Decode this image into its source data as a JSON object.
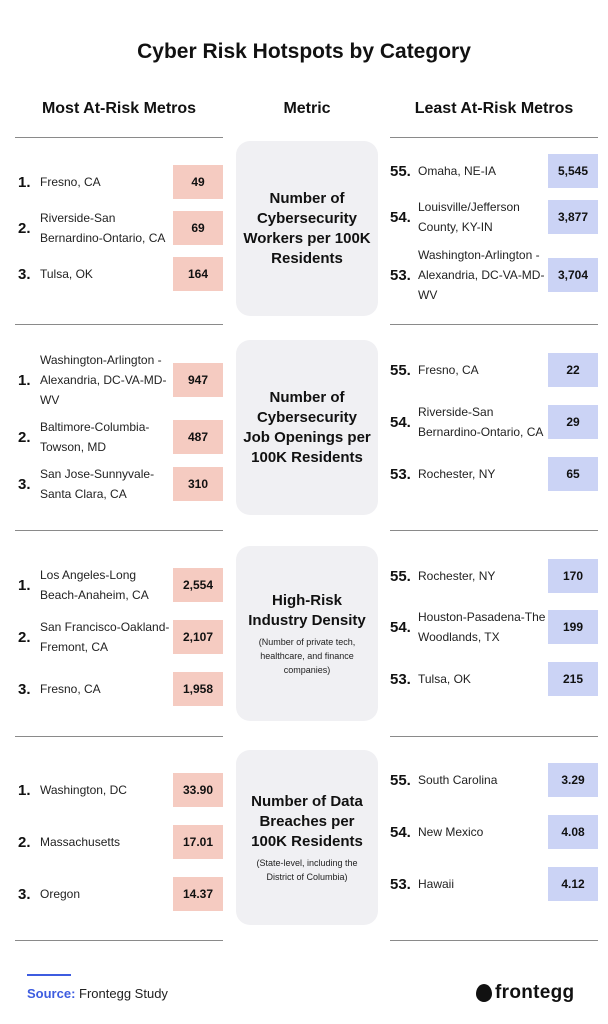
{
  "title": "Cyber Risk Hotspots by Category",
  "headers": {
    "left": "Most At-Risk Metros",
    "middle": "Metric",
    "right": "Least At-Risk Metros"
  },
  "colors": {
    "most_at_risk": "#f5cbc1",
    "least_at_risk": "#cbd3f5",
    "metric_box": "#f0f0f3",
    "source_accent": "#3d5ce0"
  },
  "sections": [
    {
      "metric": "Number of Cybersecurity Workers per 100K Residents",
      "note": "",
      "most": [
        {
          "rank": "1.",
          "name": "Fresno, CA",
          "value": "49"
        },
        {
          "rank": "2.",
          "name": "Riverside-San Bernardino-Ontario, CA",
          "value": "69"
        },
        {
          "rank": "3.",
          "name": "Tulsa, OK",
          "value": "164"
        }
      ],
      "least": [
        {
          "rank": "55.",
          "name": "Omaha, NE-IA",
          "value": "5,545"
        },
        {
          "rank": "54.",
          "name": "Louisville/Jefferson County, KY-IN",
          "value": "3,877"
        },
        {
          "rank": "53.",
          "name": "Washington-Arlington -Alexandria, DC-VA-MD-WV",
          "value": "3,704"
        }
      ]
    },
    {
      "metric": "Number of Cybersecurity Job Openings per 100K Residents",
      "note": "",
      "most": [
        {
          "rank": "1.",
          "name": "Washington-Arlington -Alexandria, DC-VA-MD-WV",
          "value": "947"
        },
        {
          "rank": "2.",
          "name": "Baltimore-Columbia-Towson, MD",
          "value": "487"
        },
        {
          "rank": "3.",
          "name": "San Jose-Sunnyvale-Santa Clara, CA",
          "value": "310"
        }
      ],
      "least": [
        {
          "rank": "55.",
          "name": "Fresno, CA",
          "value": "22"
        },
        {
          "rank": "54.",
          "name": "Riverside-San Bernardino-Ontario, CA",
          "value": "29"
        },
        {
          "rank": "53.",
          "name": "Rochester, NY",
          "value": "65"
        }
      ]
    },
    {
      "metric": "High-Risk Industry Density",
      "note": "(Number of private tech, healthcare, and finance companies)",
      "most": [
        {
          "rank": "1.",
          "name": "Los Angeles-Long Beach-Anaheim, CA",
          "value": "2,554"
        },
        {
          "rank": "2.",
          "name": "San Francisco-Oakland-Fremont, CA",
          "value": "2,107"
        },
        {
          "rank": "3.",
          "name": "Fresno, CA",
          "value": "1,958"
        }
      ],
      "least": [
        {
          "rank": "55.",
          "name": "Rochester, NY",
          "value": "170"
        },
        {
          "rank": "54.",
          "name": "Houston-Pasadena-The Woodlands, TX",
          "value": "199"
        },
        {
          "rank": "53.",
          "name": "Tulsa, OK",
          "value": "215"
        }
      ]
    },
    {
      "metric": "Number of Data Breaches per 100K Residents",
      "note": "(State-level, including the District of Columbia)",
      "most": [
        {
          "rank": "1.",
          "name": "Washington, DC",
          "value": "33.90"
        },
        {
          "rank": "2.",
          "name": "Massachusetts",
          "value": "17.01"
        },
        {
          "rank": "3.",
          "name": "Oregon",
          "value": "14.37"
        }
      ],
      "least": [
        {
          "rank": "55.",
          "name": "South Carolina",
          "value": "3.29"
        },
        {
          "rank": "54.",
          "name": "New Mexico",
          "value": "4.08"
        },
        {
          "rank": "53.",
          "name": "Hawaii",
          "value": "4.12"
        }
      ]
    }
  ],
  "source": {
    "label": "Source:",
    "text": "Frontegg Study"
  },
  "brand": {
    "name": "frontegg",
    "icon": "frontegg-logo-icon"
  }
}
